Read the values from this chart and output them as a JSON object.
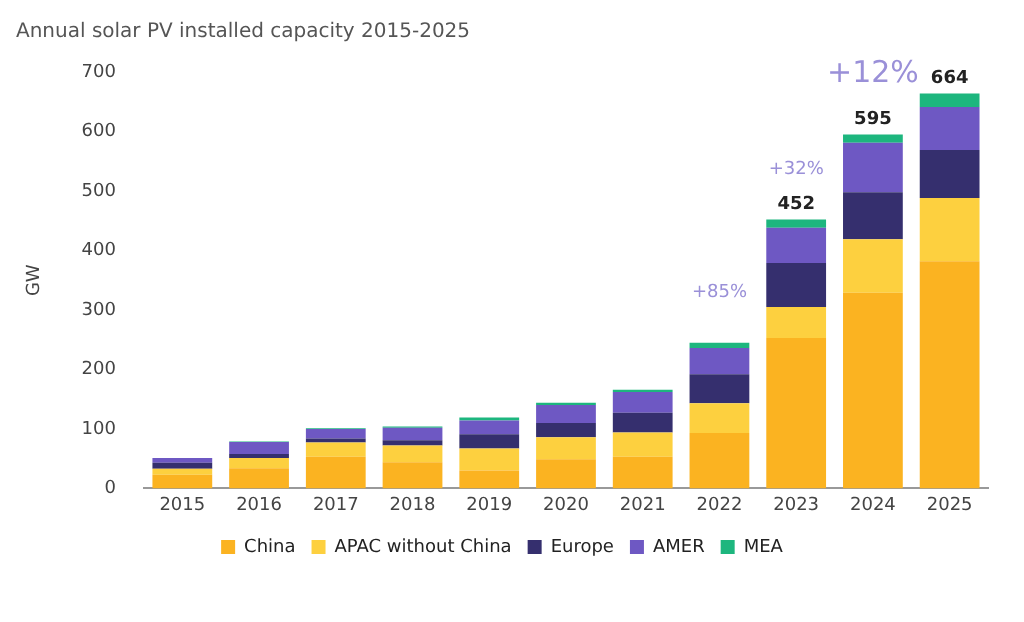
{
  "chart_data": {
    "type": "bar",
    "title": "Annual solar PV installed capacity 2015-2025",
    "ylabel": "GW",
    "categories": [
      "2015",
      "2016",
      "2017",
      "2018",
      "2019",
      "2020",
      "2021",
      "2022",
      "2023",
      "2024",
      "2025"
    ],
    "stacked": true,
    "series": [
      {
        "name": "China",
        "color": "#fbb321",
        "values": [
          23,
          34,
          53,
          44,
          30,
          49,
          53,
          93,
          253,
          329,
          382
        ]
      },
      {
        "name": "APAC without China",
        "color": "#fdd03f",
        "values": [
          10,
          17,
          24,
          28,
          37,
          37,
          41,
          50,
          52,
          90,
          106
        ]
      },
      {
        "name": "Europe",
        "color": "#352f6e",
        "values": [
          10,
          7,
          7,
          9,
          24,
          24,
          33,
          49,
          74,
          79,
          81
        ]
      },
      {
        "name": "AMER",
        "color": "#6e58c3",
        "values": [
          8,
          20,
          16,
          21,
          23,
          30,
          35,
          44,
          59,
          83,
          72
        ]
      },
      {
        "name": "MEA",
        "color": "#1db67e",
        "values": [
          0,
          1,
          1,
          2,
          5,
          4,
          4,
          9,
          14,
          14,
          23
        ]
      }
    ],
    "totals": [
      null,
      null,
      null,
      null,
      null,
      null,
      null,
      null,
      "452",
      "595",
      "664"
    ],
    "annotations": [
      "+85%",
      "+32%",
      "+12%"
    ],
    "ylim": [
      0,
      700
    ],
    "yticks": [
      0,
      100,
      200,
      300,
      400,
      500,
      600,
      700
    ],
    "grid": false,
    "legend": "bottom"
  }
}
